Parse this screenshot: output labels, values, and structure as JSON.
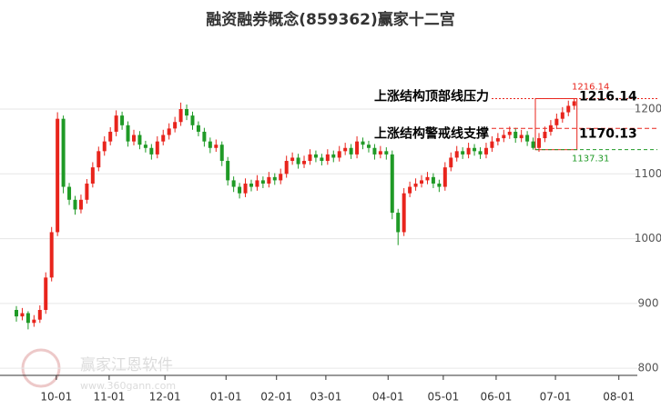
{
  "chart_data": {
    "type": "candlestick",
    "title": "融资融券概念(859362)赢家十二宫",
    "up_color": "#e8241c",
    "down_color": "#1f9a26",
    "ylim": [
      789,
      1300
    ],
    "yticks": [
      800,
      900,
      1000,
      1100,
      1200
    ],
    "grid": true,
    "xlim": [
      0,
      109
    ],
    "xticks": [
      {
        "value": 6.8,
        "label": "10-01"
      },
      {
        "value": 15.8,
        "label": "11-01"
      },
      {
        "value": 25.3,
        "label": "12-01"
      },
      {
        "value": 35.7,
        "label": "01-01"
      },
      {
        "value": 44.3,
        "label": "02-01"
      },
      {
        "value": 52.7,
        "label": "03-01"
      },
      {
        "value": 63.3,
        "label": "04-01"
      },
      {
        "value": 72.7,
        "label": "05-01"
      },
      {
        "value": 81.7,
        "label": "06-01"
      },
      {
        "value": 91.8,
        "label": "07-01"
      },
      {
        "value": 102.6,
        "label": "08-01"
      }
    ],
    "candles": [
      [
        890,
        896,
        872,
        880
      ],
      [
        880,
        893,
        874,
        885
      ],
      [
        885,
        888,
        860,
        870
      ],
      [
        870,
        882,
        864,
        875
      ],
      [
        875,
        897,
        870,
        890
      ],
      [
        890,
        948,
        884,
        940
      ],
      [
        940,
        1018,
        934,
        1010
      ],
      [
        1010,
        1195,
        1004,
        1185
      ],
      [
        1185,
        1190,
        1070,
        1080
      ],
      [
        1080,
        1086,
        1052,
        1060
      ],
      [
        1060,
        1066,
        1037,
        1045
      ],
      [
        1045,
        1068,
        1039,
        1060
      ],
      [
        1060,
        1092,
        1054,
        1085
      ],
      [
        1085,
        1118,
        1079,
        1110
      ],
      [
        1110,
        1142,
        1104,
        1135
      ],
      [
        1135,
        1158,
        1128,
        1150
      ],
      [
        1150,
        1172,
        1144,
        1165
      ],
      [
        1165,
        1198,
        1158,
        1190
      ],
      [
        1190,
        1196,
        1168,
        1175
      ],
      [
        1175,
        1181,
        1142,
        1150
      ],
      [
        1150,
        1168,
        1144,
        1160
      ],
      [
        1160,
        1166,
        1138,
        1145
      ],
      [
        1145,
        1151,
        1133,
        1140
      ],
      [
        1140,
        1146,
        1122,
        1130
      ],
      [
        1130,
        1158,
        1124,
        1150
      ],
      [
        1150,
        1168,
        1144,
        1160
      ],
      [
        1160,
        1178,
        1153,
        1170
      ],
      [
        1170,
        1188,
        1164,
        1180
      ],
      [
        1180,
        1210,
        1174,
        1200
      ],
      [
        1200,
        1207,
        1183,
        1190
      ],
      [
        1190,
        1196,
        1168,
        1175
      ],
      [
        1175,
        1181,
        1158,
        1165
      ],
      [
        1165,
        1171,
        1142,
        1150
      ],
      [
        1150,
        1156,
        1132,
        1140
      ],
      [
        1140,
        1153,
        1134,
        1145
      ],
      [
        1145,
        1150,
        1112,
        1120
      ],
      [
        1120,
        1126,
        1082,
        1090
      ],
      [
        1090,
        1096,
        1072,
        1080
      ],
      [
        1080,
        1086,
        1062,
        1070
      ],
      [
        1070,
        1093,
        1064,
        1085
      ],
      [
        1085,
        1091,
        1073,
        1080
      ],
      [
        1080,
        1098,
        1074,
        1090
      ],
      [
        1090,
        1096,
        1078,
        1085
      ],
      [
        1085,
        1103,
        1079,
        1095
      ],
      [
        1095,
        1101,
        1083,
        1090
      ],
      [
        1090,
        1108,
        1084,
        1100
      ],
      [
        1100,
        1128,
        1094,
        1120
      ],
      [
        1120,
        1133,
        1114,
        1125
      ],
      [
        1125,
        1131,
        1108,
        1115
      ],
      [
        1115,
        1128,
        1109,
        1120
      ],
      [
        1120,
        1138,
        1114,
        1130
      ],
      [
        1130,
        1136,
        1118,
        1125
      ],
      [
        1125,
        1131,
        1113,
        1120
      ],
      [
        1120,
        1138,
        1114,
        1130
      ],
      [
        1130,
        1136,
        1118,
        1125
      ],
      [
        1125,
        1143,
        1119,
        1135
      ],
      [
        1135,
        1148,
        1129,
        1140
      ],
      [
        1140,
        1146,
        1123,
        1130
      ],
      [
        1130,
        1158,
        1124,
        1150
      ],
      [
        1150,
        1156,
        1138,
        1145
      ],
      [
        1145,
        1151,
        1133,
        1140
      ],
      [
        1140,
        1146,
        1122,
        1130
      ],
      [
        1130,
        1143,
        1124,
        1135
      ],
      [
        1135,
        1141,
        1122,
        1130
      ],
      [
        1130,
        1136,
        1030,
        1040
      ],
      [
        1040,
        1046,
        990,
        1010
      ],
      [
        1010,
        1078,
        1004,
        1070
      ],
      [
        1070,
        1088,
        1064,
        1080
      ],
      [
        1080,
        1093,
        1074,
        1085
      ],
      [
        1085,
        1098,
        1079,
        1090
      ],
      [
        1090,
        1103,
        1084,
        1095
      ],
      [
        1095,
        1101,
        1078,
        1085
      ],
      [
        1085,
        1091,
        1072,
        1080
      ],
      [
        1080,
        1118,
        1074,
        1110
      ],
      [
        1110,
        1133,
        1104,
        1125
      ],
      [
        1125,
        1143,
        1119,
        1135
      ],
      [
        1135,
        1141,
        1123,
        1130
      ],
      [
        1130,
        1148,
        1124,
        1140
      ],
      [
        1140,
        1146,
        1128,
        1135
      ],
      [
        1135,
        1141,
        1123,
        1130
      ],
      [
        1130,
        1148,
        1124,
        1140
      ],
      [
        1140,
        1158,
        1134,
        1150
      ],
      [
        1150,
        1163,
        1144,
        1155
      ],
      [
        1155,
        1168,
        1149,
        1160
      ],
      [
        1160,
        1173,
        1154,
        1165
      ],
      [
        1165,
        1171,
        1148,
        1155
      ],
      [
        1155,
        1168,
        1149,
        1160
      ],
      [
        1160,
        1166,
        1143,
        1150
      ],
      [
        1150,
        1156,
        1137.31,
        1140
      ],
      [
        1140,
        1163,
        1134,
        1155
      ],
      [
        1155,
        1173,
        1149,
        1165
      ],
      [
        1165,
        1183,
        1159,
        1175
      ],
      [
        1175,
        1193,
        1169,
        1185
      ],
      [
        1185,
        1203,
        1179,
        1195
      ],
      [
        1195,
        1213,
        1189,
        1205
      ],
      [
        1205,
        1216.14,
        1199,
        1212
      ]
    ],
    "box_start": 89,
    "resistance": {
      "label": "上涨结构顶部线压力",
      "value": 1216.14
    },
    "support": {
      "label": "上涨结构警戒线支撑",
      "value": 1170.13
    },
    "box_low": 1137.31,
    "watermark": {
      "name": "赢家江恩软件",
      "url": "www.360gann.com"
    }
  }
}
